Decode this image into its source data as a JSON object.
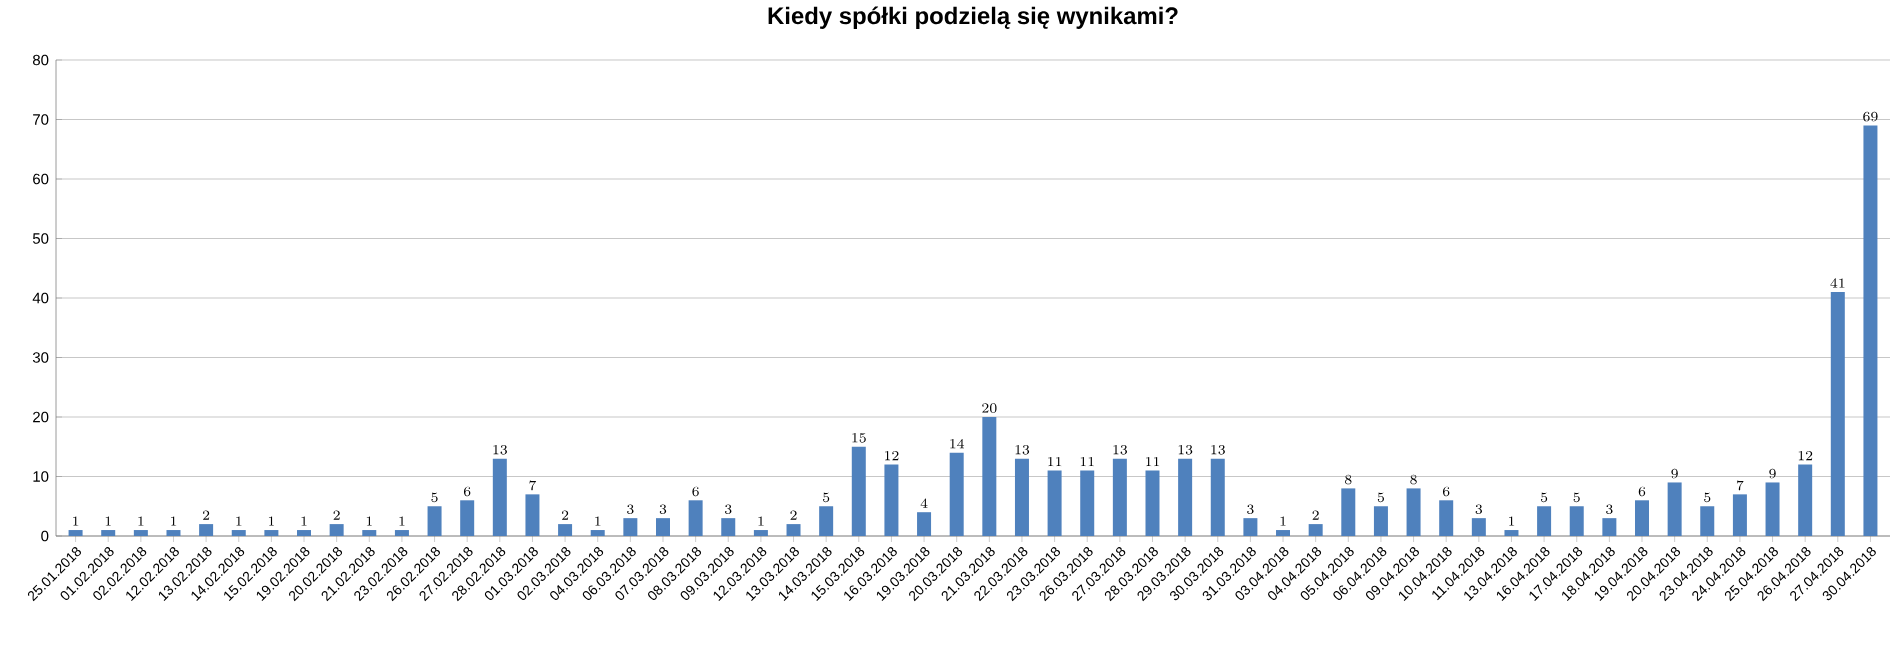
{
  "chart_data": {
    "type": "bar",
    "title": "Kiedy spółki podzielą się wynikami?",
    "categories": [
      "25.01.2018",
      "01.02.2018",
      "02.02.2018",
      "12.02.2018",
      "13.02.2018",
      "14.02.2018",
      "15.02.2018",
      "19.02.2018",
      "20.02.2018",
      "21.02.2018",
      "23.02.2018",
      "26.02.2018",
      "27.02.2018",
      "28.02.2018",
      "01.03.2018",
      "02.03.2018",
      "04.03.2018",
      "06.03.2018",
      "07.03.2018",
      "08.03.2018",
      "09.03.2018",
      "12.03.2018",
      "13.03.2018",
      "14.03.2018",
      "15.03.2018",
      "16.03.2018",
      "19.03.2018",
      "20.03.2018",
      "21.03.2018",
      "22.03.2018",
      "23.03.2018",
      "26.03.2018",
      "27.03.2018",
      "28.03.2018",
      "29.03.2018",
      "30.03.2018",
      "31.03.2018",
      "03.04.2018",
      "04.04.2018",
      "05.04.2018",
      "06.04.2018",
      "09.04.2018",
      "10.04.2018",
      "11.04.2018",
      "13.04.2018",
      "16.04.2018",
      "17.04.2018",
      "18.04.2018",
      "19.04.2018",
      "20.04.2018",
      "23.04.2018",
      "24.04.2018",
      "25.04.2018",
      "26.04.2018",
      "27.04.2018",
      "30.04.2018"
    ],
    "values": [
      1,
      1,
      1,
      1,
      2,
      1,
      1,
      1,
      2,
      1,
      1,
      5,
      6,
      13,
      7,
      2,
      1,
      3,
      3,
      6,
      3,
      1,
      2,
      5,
      15,
      12,
      4,
      14,
      20,
      13,
      11,
      11,
      13,
      11,
      13,
      13,
      3,
      1,
      2,
      8,
      5,
      8,
      6,
      3,
      1,
      5,
      5,
      3,
      6,
      9,
      5,
      7,
      9,
      12,
      41,
      69
    ],
    "color": "#4f81bd",
    "ylim": [
      0,
      80
    ],
    "yticks": [
      0,
      10,
      20,
      30,
      40,
      50,
      60,
      70,
      80
    ],
    "grid": "y",
    "data_labels": true
  }
}
